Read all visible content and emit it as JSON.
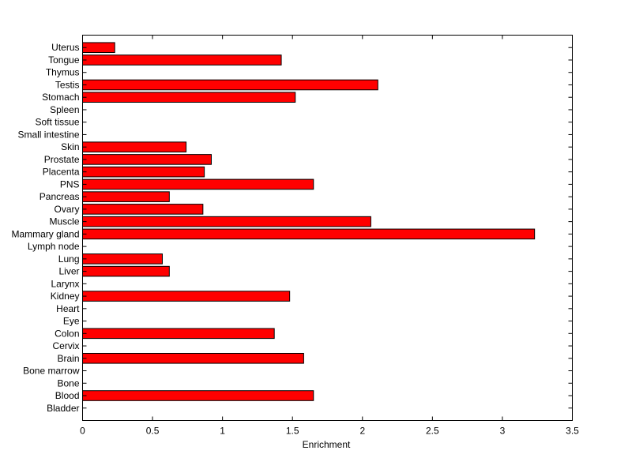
{
  "chart_data": {
    "type": "bar",
    "orientation": "horizontal",
    "categories": [
      "Bladder",
      "Blood",
      "Bone",
      "Bone marrow",
      "Brain",
      "Cervix",
      "Colon",
      "Eye",
      "Heart",
      "Kidney",
      "Larynx",
      "Liver",
      "Lung",
      "Lymph node",
      "Mammary gland",
      "Muscle",
      "Ovary",
      "Pancreas",
      "PNS",
      "Placenta",
      "Prostate",
      "Skin",
      "Small intestine",
      "Soft tissue",
      "Spleen",
      "Stomach",
      "Testis",
      "Thymus",
      "Tongue",
      "Uterus"
    ],
    "values": [
      0,
      1.65,
      0,
      0,
      1.58,
      0,
      1.37,
      0,
      0,
      1.48,
      0,
      0.62,
      0.57,
      0,
      3.23,
      2.06,
      0.86,
      0.62,
      1.65,
      0.87,
      0.92,
      0.74,
      0,
      0,
      0,
      1.52,
      2.11,
      0,
      1.42,
      0.23
    ],
    "xlabel": "Enrichment",
    "xlim": [
      0,
      3.5
    ],
    "xticks": [
      "0",
      "0.5",
      "1",
      "1.5",
      "2",
      "2.5",
      "3",
      "3.5"
    ],
    "grid": false,
    "bar_color": "#ff0000",
    "edge_color": "#000000"
  }
}
